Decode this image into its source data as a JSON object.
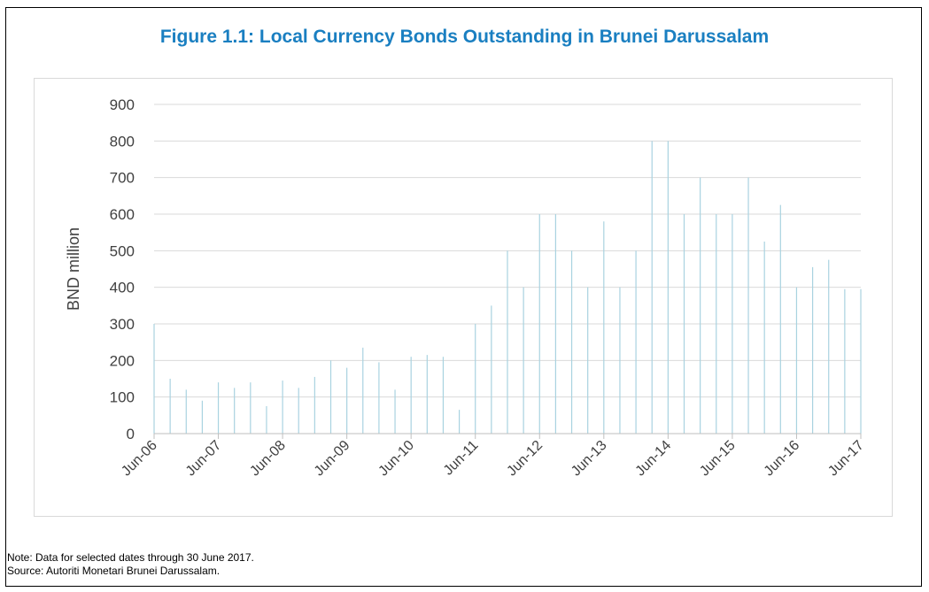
{
  "figure": {
    "title": "Figure 1.1: Local Currency Bonds Outstanding in Brunei Darussalam",
    "note": "Note: Data for selected dates through 30 June 2017.",
    "source": "Source: Autoriti Monetari Brunei Darussalam.",
    "title_color": "#1a7fc1"
  },
  "chart_data": {
    "type": "bar",
    "ylabel": "BND million",
    "xlabel": "",
    "ylim": [
      0,
      900
    ],
    "yticks": [
      0,
      100,
      200,
      300,
      400,
      500,
      600,
      700,
      800,
      900
    ],
    "grid": true,
    "bar_color": "#a9d3e0",
    "gridline_color": "#d9d9d9",
    "x_tick_labels": [
      "Jun-06",
      "Jun-07",
      "Jun-08",
      "Jun-09",
      "Jun-10",
      "Jun-11",
      "Jun-12",
      "Jun-13",
      "Jun-14",
      "Jun-15",
      "Jun-16",
      "Jun-17"
    ],
    "values": [
      300,
      150,
      120,
      90,
      140,
      125,
      140,
      75,
      145,
      125,
      155,
      200,
      180,
      235,
      195,
      120,
      210,
      215,
      210,
      65,
      300,
      350,
      500,
      400,
      600,
      600,
      500,
      400,
      580,
      400,
      500,
      800,
      800,
      600,
      700,
      600,
      600,
      700,
      525,
      625,
      400,
      455,
      475,
      395,
      395
    ]
  }
}
